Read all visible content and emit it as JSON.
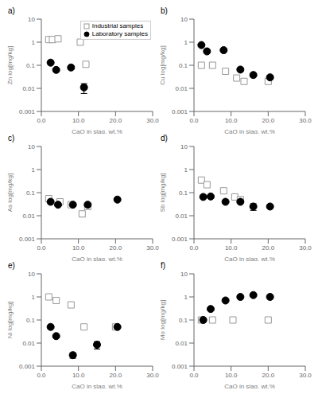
{
  "chart_data": [
    {
      "type": "scatter",
      "title": "a)",
      "xlabel": "CaO in slag, wt.%",
      "ylabel": "Zn log[mg/kg]",
      "xlim": [
        0,
        30
      ],
      "xticks": [
        {
          "value": 0,
          "label": "0.0"
        },
        {
          "value": 10,
          "label": "10.0"
        },
        {
          "value": 20,
          "label": "20.0"
        },
        {
          "value": 30,
          "label": "30.0"
        }
      ],
      "ylim": [
        0.001,
        10
      ],
      "yticks": [
        0.001,
        0.01,
        0.1,
        1,
        10
      ],
      "log": "y",
      "grid": false,
      "legend": "upper right",
      "series": [
        {
          "name": "Industrial samples",
          "color": "#999999",
          "marker": "square",
          "x": [
            2.0,
            3.0,
            4.5,
            10.5,
            12.0
          ],
          "values": [
            1.3,
            1.3,
            1.4,
            1.0,
            0.11
          ],
          "yerr": [
            0.05,
            0.05,
            0.05,
            0.05,
            0.01
          ]
        },
        {
          "name": "Laboratory samples",
          "color": "#000000",
          "marker": "circle",
          "x": [
            2.5,
            4.0,
            8.0,
            11.5
          ],
          "values": [
            0.13,
            0.063,
            0.08,
            0.011
          ],
          "yerr": [
            0.015,
            0.008,
            0.012,
            0.005
          ]
        }
      ]
    },
    {
      "type": "scatter",
      "title": "b)",
      "xlabel": "CaO in slag, wt.%",
      "ylabel": "Cu log[mg/kg]",
      "xlim": [
        0,
        30
      ],
      "xticks": [
        {
          "value": 0,
          "label": "0.0"
        },
        {
          "value": 10,
          "label": "10.0"
        },
        {
          "value": 20,
          "label": "20.0"
        },
        {
          "value": 30,
          "label": "30.0"
        }
      ],
      "ylim": [
        0.001,
        10
      ],
      "yticks": [
        0.001,
        0.01,
        0.1,
        1,
        10
      ],
      "log": "y",
      "grid": false,
      "series": [
        {
          "name": "Industrial samples",
          "color": "#999999",
          "marker": "square",
          "x": [
            2.0,
            5.0,
            8.5,
            11.5,
            13.5,
            20.0
          ],
          "values": [
            0.1,
            0.1,
            0.055,
            0.028,
            0.02,
            0.02
          ],
          "yerr": [
            0.008,
            0.008,
            0.005,
            0.003,
            0.002,
            0.002
          ]
        },
        {
          "name": "Laboratory samples",
          "color": "#000000",
          "marker": "circle",
          "x": [
            2.0,
            3.5,
            8.0,
            12.5,
            16.0,
            20.5
          ],
          "values": [
            0.75,
            0.4,
            0.45,
            0.065,
            0.038,
            0.03
          ],
          "yerr": [
            0.06,
            0.04,
            0.04,
            0.008,
            0.006,
            0.006
          ]
        }
      ]
    },
    {
      "type": "scatter",
      "title": "c)",
      "xlabel": "CaO in slag, wt.%",
      "ylabel": "As log[mg/kg]",
      "xlim": [
        0,
        30
      ],
      "xticks": [
        {
          "value": 0,
          "label": "0.0"
        },
        {
          "value": 10,
          "label": "10.0"
        },
        {
          "value": 20,
          "label": "20.0"
        },
        {
          "value": 30,
          "label": "30.0"
        }
      ],
      "ylim": [
        0.001,
        10
      ],
      "yticks": [
        0.001,
        0.01,
        0.1,
        1,
        10
      ],
      "log": "y",
      "grid": false,
      "series": [
        {
          "name": "Industrial samples",
          "color": "#999999",
          "marker": "square",
          "x": [
            2.0,
            5.0,
            8.0,
            11.0,
            12.5
          ],
          "values": [
            0.055,
            0.04,
            0.03,
            0.012,
            0.025
          ],
          "yerr": [
            0.004,
            0.003,
            0.003,
            0.003,
            0.003
          ]
        },
        {
          "name": "Laboratory samples",
          "color": "#000000",
          "marker": "circle",
          "x": [
            2.5,
            4.5,
            8.5,
            12.5,
            20.5
          ],
          "values": [
            0.04,
            0.03,
            0.03,
            0.03,
            0.05
          ],
          "yerr": [
            0.003,
            0.003,
            0.003,
            0.003,
            0.004
          ]
        }
      ]
    },
    {
      "type": "scatter",
      "title": "d)",
      "xlabel": "CaO in slag, wt.%",
      "ylabel": "Sb log[mg/kg]",
      "xlim": [
        0,
        30
      ],
      "xticks": [
        {
          "value": 0,
          "label": "0.0"
        },
        {
          "value": 10,
          "label": "10.0"
        },
        {
          "value": 20,
          "label": "20.0"
        },
        {
          "value": 30,
          "label": "30.0"
        }
      ],
      "ylim": [
        0.001,
        10
      ],
      "yticks": [
        0.001,
        0.01,
        0.1,
        1,
        10
      ],
      "log": "y",
      "grid": false,
      "series": [
        {
          "name": "Industrial samples",
          "color": "#999999",
          "marker": "square",
          "x": [
            2.0,
            3.5,
            8.0,
            11.0,
            12.5
          ],
          "values": [
            0.35,
            0.22,
            0.12,
            0.065,
            0.05
          ],
          "yerr": [
            0.04,
            0.03,
            0.02,
            0.008,
            0.006
          ]
        },
        {
          "name": "Laboratory samples",
          "color": "#000000",
          "marker": "circle",
          "x": [
            2.5,
            4.5,
            8.5,
            12.5,
            16.0,
            20.5
          ],
          "values": [
            0.065,
            0.068,
            0.04,
            0.04,
            0.025,
            0.025
          ],
          "yerr": [
            0.006,
            0.006,
            0.004,
            0.004,
            0.008,
            0.003
          ]
        }
      ]
    },
    {
      "type": "scatter",
      "title": "e)",
      "xlabel": "CaO in slag, wt.%",
      "ylabel": "Ni log[mg/kg]",
      "xlim": [
        0,
        30
      ],
      "xticks": [
        {
          "value": 0,
          "label": "0.0"
        },
        {
          "value": 10,
          "label": "10.0"
        },
        {
          "value": 20,
          "label": "20.0"
        },
        {
          "value": 30,
          "label": "30.0"
        }
      ],
      "ylim": [
        0.001,
        10
      ],
      "yticks": [
        0.001,
        0.01,
        0.1,
        1,
        10
      ],
      "log": "y",
      "grid": false,
      "series": [
        {
          "name": "Industrial samples",
          "color": "#999999",
          "marker": "square",
          "x": [
            2.0,
            4.0,
            8.0,
            11.5,
            20.0
          ],
          "values": [
            1.0,
            0.7,
            0.45,
            0.05,
            0.05
          ],
          "yerr": [
            0.08,
            0.06,
            0.04,
            0.005,
            0.005
          ]
        },
        {
          "name": "Laboratory samples",
          "color": "#000000",
          "marker": "circle",
          "x": [
            2.5,
            4.0,
            8.5,
            15.0,
            20.5
          ],
          "values": [
            0.05,
            0.02,
            0.003,
            0.0085,
            0.05
          ],
          "yerr": [
            0.005,
            0.002,
            0.0008,
            0.003,
            0.005
          ]
        }
      ]
    },
    {
      "type": "scatter",
      "title": "f)",
      "xlabel": "CaO in slag, wt.%",
      "ylabel": "Mo log[mg/kg]",
      "xlim": [
        0,
        30
      ],
      "xticks": [
        {
          "value": 0,
          "label": "0.0"
        },
        {
          "value": 10,
          "label": "10.0"
        },
        {
          "value": 20,
          "label": "20.0"
        },
        {
          "value": 30,
          "label": "30.0"
        }
      ],
      "ylim": [
        0.001,
        10
      ],
      "yticks": [
        0.001,
        0.01,
        0.1,
        1,
        10
      ],
      "log": "y",
      "grid": false,
      "series": [
        {
          "name": "Industrial samples",
          "color": "#999999",
          "marker": "square",
          "x": [
            2.0,
            5.0,
            10.5,
            20.0
          ],
          "values": [
            0.1,
            0.1,
            0.1,
            0.1
          ],
          "yerr": [
            0.008,
            0.008,
            0.008,
            0.008
          ]
        },
        {
          "name": "Laboratory samples",
          "color": "#000000",
          "marker": "circle",
          "x": [
            2.5,
            4.5,
            8.5,
            12.5,
            16.0,
            20.5
          ],
          "values": [
            0.1,
            0.3,
            0.7,
            1.0,
            1.2,
            1.0
          ],
          "yerr": [
            0.01,
            0.03,
            0.07,
            0.1,
            0.12,
            0.1
          ]
        }
      ]
    }
  ]
}
